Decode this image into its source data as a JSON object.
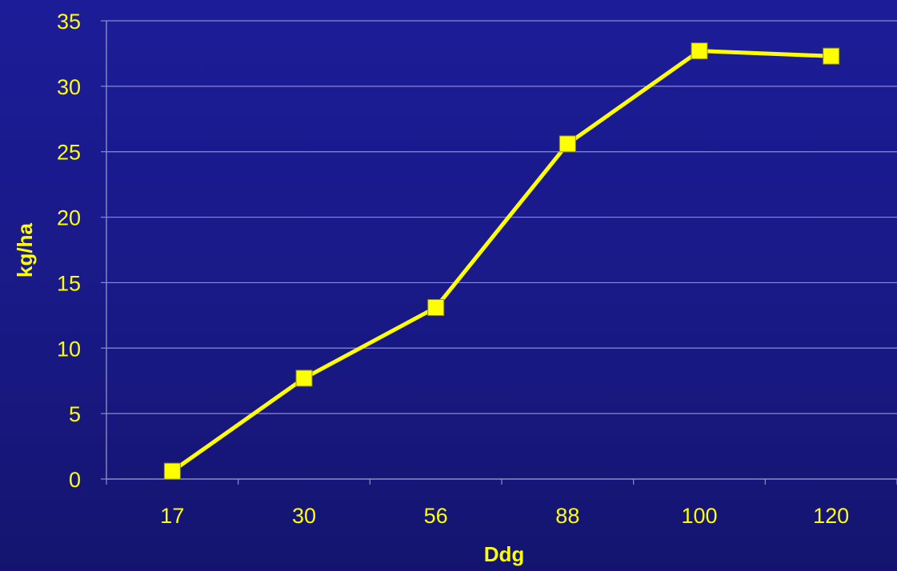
{
  "chart_data": {
    "type": "line",
    "title": "",
    "xlabel": "Ddg",
    "ylabel": "kg/ha",
    "categories": [
      "17",
      "30",
      "56",
      "88",
      "100",
      "120"
    ],
    "series": [
      {
        "values": [
          0.6,
          7.7,
          13.1,
          25.6,
          32.7,
          32.3
        ],
        "marker": "square"
      }
    ],
    "ylim": [
      0,
      35
    ],
    "yticks": [
      0,
      5,
      10,
      15,
      20,
      25,
      30,
      35
    ],
    "grid": true,
    "legend": "none"
  },
  "colors": {
    "background": "#1a1a8c",
    "text": "#ffff00",
    "series": "#ffff00",
    "gridline": "#8c8cc8",
    "axis": "#8c8cc8"
  }
}
